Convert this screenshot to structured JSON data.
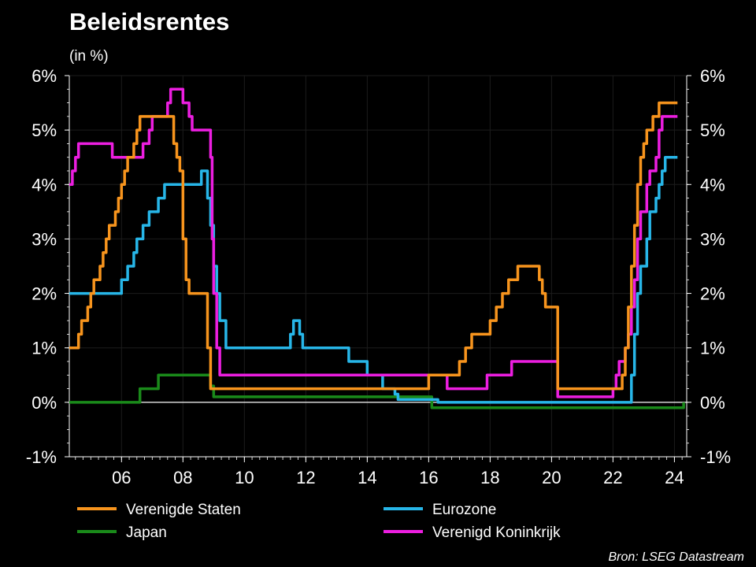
{
  "chart_data": {
    "type": "line",
    "title": "Beleidsrentes",
    "subtitle": "(in %)",
    "source": "Bron: LSEG Datastream",
    "xlim": [
      2004.3,
      2024.4
    ],
    "ylim": [
      -1,
      6
    ],
    "y_ticks": [
      -1,
      0,
      1,
      2,
      3,
      4,
      5,
      6
    ],
    "y_tick_labels": [
      "-1%",
      "0%",
      "1%",
      "2%",
      "3%",
      "4%",
      "5%",
      "6%"
    ],
    "x_ticks": [
      2006,
      2008,
      2010,
      2012,
      2014,
      2016,
      2018,
      2020,
      2022,
      2024
    ],
    "x_tick_labels": [
      "06",
      "08",
      "10",
      "12",
      "14",
      "16",
      "18",
      "20",
      "22",
      "24"
    ],
    "grid": true,
    "legend_position": "bottom",
    "series": [
      {
        "name": "Verenigde Staten",
        "color": "#f7941d",
        "points": [
          [
            2004.3,
            1.0
          ],
          [
            2004.5,
            1.0
          ],
          [
            2004.6,
            1.25
          ],
          [
            2004.7,
            1.5
          ],
          [
            2004.9,
            1.75
          ],
          [
            2005.0,
            2.0
          ],
          [
            2005.1,
            2.25
          ],
          [
            2005.3,
            2.5
          ],
          [
            2005.4,
            2.75
          ],
          [
            2005.5,
            3.0
          ],
          [
            2005.6,
            3.25
          ],
          [
            2005.8,
            3.5
          ],
          [
            2005.9,
            3.75
          ],
          [
            2006.0,
            4.0
          ],
          [
            2006.1,
            4.25
          ],
          [
            2006.2,
            4.5
          ],
          [
            2006.4,
            4.75
          ],
          [
            2006.5,
            5.0
          ],
          [
            2006.6,
            5.25
          ],
          [
            2007.6,
            5.25
          ],
          [
            2007.7,
            4.75
          ],
          [
            2007.8,
            4.5
          ],
          [
            2007.9,
            4.25
          ],
          [
            2008.0,
            3.0
          ],
          [
            2008.1,
            2.25
          ],
          [
            2008.2,
            2.0
          ],
          [
            2008.7,
            2.0
          ],
          [
            2008.8,
            1.0
          ],
          [
            2008.9,
            0.25
          ],
          [
            2015.9,
            0.25
          ],
          [
            2016.0,
            0.5
          ],
          [
            2016.9,
            0.5
          ],
          [
            2017.0,
            0.75
          ],
          [
            2017.2,
            1.0
          ],
          [
            2017.4,
            1.25
          ],
          [
            2017.9,
            1.25
          ],
          [
            2018.0,
            1.5
          ],
          [
            2018.2,
            1.75
          ],
          [
            2018.4,
            2.0
          ],
          [
            2018.6,
            2.25
          ],
          [
            2018.9,
            2.5
          ],
          [
            2019.5,
            2.5
          ],
          [
            2019.6,
            2.25
          ],
          [
            2019.7,
            2.0
          ],
          [
            2019.8,
            1.75
          ],
          [
            2020.1,
            1.75
          ],
          [
            2020.2,
            0.25
          ],
          [
            2022.2,
            0.25
          ],
          [
            2022.3,
            0.5
          ],
          [
            2022.4,
            1.0
          ],
          [
            2022.5,
            1.75
          ],
          [
            2022.6,
            2.5
          ],
          [
            2022.7,
            3.25
          ],
          [
            2022.8,
            4.0
          ],
          [
            2022.9,
            4.5
          ],
          [
            2023.0,
            4.75
          ],
          [
            2023.1,
            5.0
          ],
          [
            2023.3,
            5.25
          ],
          [
            2023.5,
            5.5
          ],
          [
            2024.1,
            5.5
          ]
        ]
      },
      {
        "name": "Eurozone",
        "color": "#27b6e8",
        "points": [
          [
            2004.3,
            2.0
          ],
          [
            2005.9,
            2.0
          ],
          [
            2006.0,
            2.25
          ],
          [
            2006.2,
            2.5
          ],
          [
            2006.4,
            2.75
          ],
          [
            2006.5,
            3.0
          ],
          [
            2006.7,
            3.25
          ],
          [
            2006.9,
            3.5
          ],
          [
            2007.2,
            3.75
          ],
          [
            2007.4,
            4.0
          ],
          [
            2008.5,
            4.0
          ],
          [
            2008.6,
            4.25
          ],
          [
            2008.8,
            3.75
          ],
          [
            2008.9,
            3.25
          ],
          [
            2009.0,
            2.5
          ],
          [
            2009.1,
            2.0
          ],
          [
            2009.2,
            1.5
          ],
          [
            2009.4,
            1.0
          ],
          [
            2011.3,
            1.0
          ],
          [
            2011.5,
            1.25
          ],
          [
            2011.6,
            1.5
          ],
          [
            2011.8,
            1.25
          ],
          [
            2011.9,
            1.0
          ],
          [
            2013.3,
            1.0
          ],
          [
            2013.4,
            0.75
          ],
          [
            2013.9,
            0.75
          ],
          [
            2014.0,
            0.5
          ],
          [
            2014.4,
            0.5
          ],
          [
            2014.5,
            0.25
          ],
          [
            2014.8,
            0.25
          ],
          [
            2014.9,
            0.15
          ],
          [
            2015.0,
            0.05
          ],
          [
            2016.2,
            0.05
          ],
          [
            2016.3,
            0.0
          ],
          [
            2022.5,
            0.0
          ],
          [
            2022.6,
            0.5
          ],
          [
            2022.7,
            1.25
          ],
          [
            2022.8,
            2.0
          ],
          [
            2022.9,
            2.5
          ],
          [
            2023.1,
            3.0
          ],
          [
            2023.2,
            3.5
          ],
          [
            2023.4,
            3.75
          ],
          [
            2023.5,
            4.0
          ],
          [
            2023.6,
            4.25
          ],
          [
            2023.7,
            4.5
          ],
          [
            2024.1,
            4.5
          ]
        ]
      },
      {
        "name": "Japan",
        "color": "#1a8a1a",
        "points": [
          [
            2004.3,
            0.0
          ],
          [
            2006.5,
            0.0
          ],
          [
            2006.6,
            0.25
          ],
          [
            2007.1,
            0.25
          ],
          [
            2007.2,
            0.5
          ],
          [
            2008.8,
            0.5
          ],
          [
            2008.9,
            0.3
          ],
          [
            2009.0,
            0.1
          ],
          [
            2016.0,
            0.1
          ],
          [
            2016.1,
            -0.1
          ],
          [
            2024.2,
            -0.1
          ],
          [
            2024.3,
            0.0
          ]
        ]
      },
      {
        "name": "Verenigd Koninkrijk",
        "color": "#ec1ee0",
        "points": [
          [
            2004.3,
            4.0
          ],
          [
            2004.4,
            4.25
          ],
          [
            2004.5,
            4.5
          ],
          [
            2004.6,
            4.75
          ],
          [
            2005.6,
            4.75
          ],
          [
            2005.7,
            4.5
          ],
          [
            2006.6,
            4.5
          ],
          [
            2006.7,
            4.75
          ],
          [
            2006.9,
            5.0
          ],
          [
            2007.0,
            5.25
          ],
          [
            2007.4,
            5.25
          ],
          [
            2007.5,
            5.5
          ],
          [
            2007.6,
            5.75
          ],
          [
            2007.9,
            5.75
          ],
          [
            2008.0,
            5.5
          ],
          [
            2008.2,
            5.25
          ],
          [
            2008.3,
            5.0
          ],
          [
            2008.8,
            5.0
          ],
          [
            2008.9,
            4.5
          ],
          [
            2008.95,
            3.0
          ],
          [
            2009.0,
            2.0
          ],
          [
            2009.1,
            1.0
          ],
          [
            2009.2,
            0.5
          ],
          [
            2016.5,
            0.5
          ],
          [
            2016.6,
            0.25
          ],
          [
            2017.8,
            0.25
          ],
          [
            2017.9,
            0.5
          ],
          [
            2018.6,
            0.5
          ],
          [
            2018.7,
            0.75
          ],
          [
            2020.1,
            0.75
          ],
          [
            2020.2,
            0.1
          ],
          [
            2021.9,
            0.1
          ],
          [
            2022.0,
            0.25
          ],
          [
            2022.1,
            0.5
          ],
          [
            2022.2,
            0.75
          ],
          [
            2022.4,
            1.0
          ],
          [
            2022.5,
            1.25
          ],
          [
            2022.6,
            1.75
          ],
          [
            2022.7,
            2.25
          ],
          [
            2022.8,
            3.0
          ],
          [
            2022.9,
            3.5
          ],
          [
            2023.1,
            4.0
          ],
          [
            2023.2,
            4.25
          ],
          [
            2023.4,
            4.5
          ],
          [
            2023.5,
            5.0
          ],
          [
            2023.6,
            5.25
          ],
          [
            2024.1,
            5.25
          ]
        ]
      }
    ]
  }
}
